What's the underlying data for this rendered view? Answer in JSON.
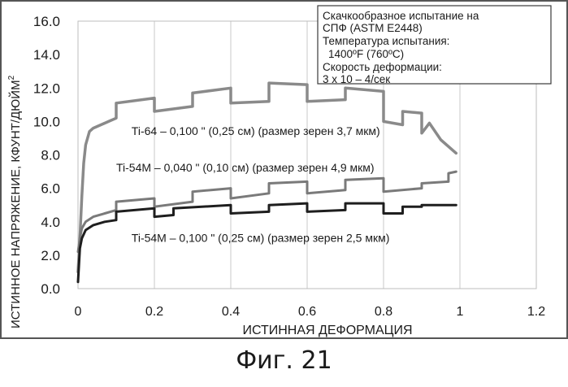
{
  "figure": {
    "caption": "Фиг. 21"
  },
  "chart_data": {
    "type": "line",
    "ylabel": "ИСТИННОЕ НАПРЯЖЕНИЕ, КФУНТ/ДЮЙМ",
    "ylabel_sup": "2",
    "xlabel": "ИСТИННАЯ ДЕФОРМАЦИЯ",
    "xlim": [
      0,
      1.2
    ],
    "ylim": [
      0,
      16
    ],
    "x_ticks": [
      {
        "value": 0,
        "label": "0"
      },
      {
        "value": 0.2,
        "label": "0.2"
      },
      {
        "value": 0.4,
        "label": "0.4"
      },
      {
        "value": 0.6,
        "label": "0.6"
      },
      {
        "value": 0.8,
        "label": "0.8"
      },
      {
        "value": 1.0,
        "label": "1"
      },
      {
        "value": 1.2,
        "label": "1.2"
      }
    ],
    "y_ticks": [
      {
        "value": 0,
        "label": "0.0"
      },
      {
        "value": 2,
        "label": "2.0"
      },
      {
        "value": 4,
        "label": "4.0"
      },
      {
        "value": 6,
        "label": "6.0"
      },
      {
        "value": 8,
        "label": "8.0"
      },
      {
        "value": 10,
        "label": "10.0"
      },
      {
        "value": 12,
        "label": "12.0"
      },
      {
        "value": 14,
        "label": "14.0"
      },
      {
        "value": 16,
        "label": "16.0"
      }
    ],
    "grid": {
      "vertical": true,
      "horizontal": false
    },
    "legend_box": {
      "position": "top-right",
      "lines": [
        "Скачкообразное испытание на",
        "СПФ (ASTM E2448)",
        "Температура испытания:",
        "1400ºF (760ºC)",
        "Скорость деформации:",
        "3 x 10 – 4/сек"
      ]
    },
    "annotations": [
      {
        "text": "Ti-64 – 0,100 \" (0,25 см) (размер зерен 3,7 мкм)",
        "x": 0.14,
        "y": 9.2
      },
      {
        "text": "Ti-54M – 0,040 \" (0,10 см) (размер зерен 4,9 мкм)",
        "x": 0.1,
        "y": 7.0
      },
      {
        "text": "Ti-54M – 0,100 \" (0,25 см) (размер зерен 2,5 мкм)",
        "x": 0.14,
        "y": 2.8
      }
    ],
    "series": [
      {
        "color": "#8a8a8a",
        "line_width": 3.5,
        "x": [
          0,
          0.005,
          0.01,
          0.015,
          0.02,
          0.03,
          0.04,
          0.06,
          0.08,
          0.1,
          0.1,
          0.2,
          0.2,
          0.3,
          0.3,
          0.4,
          0.4,
          0.5,
          0.5,
          0.6,
          0.6,
          0.7,
          0.7,
          0.8,
          0.8,
          0.85,
          0.85,
          0.9,
          0.9,
          0.92,
          0.95,
          0.99
        ],
        "y": [
          1.0,
          3.0,
          5.5,
          7.5,
          8.6,
          9.4,
          9.6,
          9.8,
          10.0,
          10.2,
          11.1,
          11.4,
          10.6,
          10.9,
          11.7,
          12.0,
          11.1,
          11.2,
          12.3,
          12.2,
          11.2,
          11.3,
          12.0,
          11.8,
          10.0,
          9.8,
          10.6,
          10.5,
          9.3,
          9.9,
          8.9,
          8.1
        ]
      },
      {
        "color": "#7a7a7a",
        "line_width": 3.0,
        "x": [
          0,
          0.005,
          0.01,
          0.02,
          0.04,
          0.07,
          0.1,
          0.1,
          0.2,
          0.2,
          0.3,
          0.3,
          0.4,
          0.4,
          0.5,
          0.5,
          0.6,
          0.6,
          0.7,
          0.7,
          0.8,
          0.8,
          0.9,
          0.9,
          0.97,
          0.97,
          0.99
        ],
        "y": [
          2.2,
          3.0,
          3.6,
          4.0,
          4.3,
          4.5,
          4.7,
          5.2,
          5.4,
          4.9,
          5.2,
          5.8,
          6.0,
          5.4,
          5.7,
          6.3,
          6.4,
          5.7,
          5.9,
          6.5,
          6.6,
          5.8,
          6.0,
          6.3,
          6.4,
          6.9,
          7.0
        ]
      },
      {
        "color": "#1e1e1e",
        "line_width": 3.0,
        "x": [
          0,
          0.005,
          0.01,
          0.02,
          0.04,
          0.07,
          0.1,
          0.1,
          0.2,
          0.2,
          0.25,
          0.25,
          0.4,
          0.4,
          0.5,
          0.5,
          0.6,
          0.6,
          0.7,
          0.7,
          0.8,
          0.8,
          0.85,
          0.85,
          0.9,
          0.9,
          0.99
        ],
        "y": [
          0.4,
          2.4,
          3.0,
          3.5,
          3.8,
          4.0,
          4.1,
          4.6,
          4.8,
          4.3,
          4.4,
          4.8,
          5.0,
          4.5,
          4.6,
          5.0,
          5.1,
          4.6,
          4.7,
          5.1,
          5.1,
          4.5,
          4.5,
          4.9,
          4.9,
          5.0,
          5.0
        ]
      }
    ]
  }
}
